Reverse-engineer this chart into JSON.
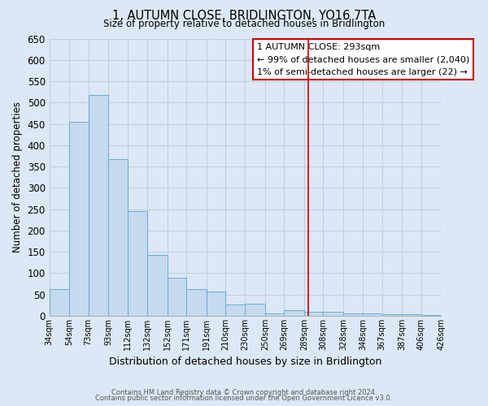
{
  "title": "1, AUTUMN CLOSE, BRIDLINGTON, YO16 7TA",
  "subtitle": "Size of property relative to detached houses in Bridlington",
  "xlabel": "Distribution of detached houses by size in Bridlington",
  "ylabel": "Number of detached properties",
  "bar_edges": [
    34,
    54,
    73,
    93,
    112,
    132,
    152,
    171,
    191,
    210,
    230,
    250,
    269,
    289,
    308,
    328,
    348,
    367,
    387,
    406,
    426
  ],
  "bar_heights": [
    62,
    455,
    518,
    368,
    246,
    142,
    90,
    62,
    57,
    27,
    28,
    5,
    13,
    10,
    10,
    5,
    5,
    3,
    3,
    2
  ],
  "bar_color": "#c5d9ef",
  "bar_edge_color": "#6aaad4",
  "tick_labels": [
    "34sqm",
    "54sqm",
    "73sqm",
    "93sqm",
    "112sqm",
    "132sqm",
    "152sqm",
    "171sqm",
    "191sqm",
    "210sqm",
    "230sqm",
    "250sqm",
    "269sqm",
    "289sqm",
    "308sqm",
    "328sqm",
    "348sqm",
    "367sqm",
    "387sqm",
    "406sqm",
    "426sqm"
  ],
  "vline_x": 293,
  "vline_color": "#cc0000",
  "ylim": [
    0,
    650
  ],
  "yticks": [
    0,
    50,
    100,
    150,
    200,
    250,
    300,
    350,
    400,
    450,
    500,
    550,
    600,
    650
  ],
  "annotation_title": "1 AUTUMN CLOSE: 293sqm",
  "annotation_line1": "← 99% of detached houses are smaller (2,040)",
  "annotation_line2": "1% of semi-detached houses are larger (22) →",
  "annotation_box_color": "#ffffff",
  "annotation_box_edge": "#cc0000",
  "footer1": "Contains HM Land Registry data © Crown copyright and database right 2024.",
  "footer2": "Contains public sector information licensed under the Open Government Licence v3.0.",
  "bg_color": "#dce8f5",
  "plot_bg_color": "#dce8f5",
  "grid_color": "#c0cfe0"
}
